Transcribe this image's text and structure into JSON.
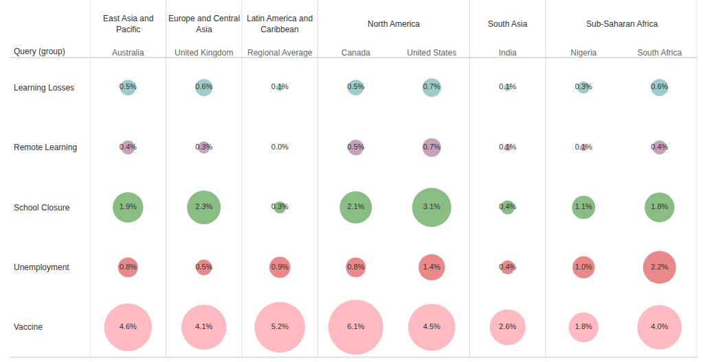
{
  "chart_data": {
    "type": "bubble",
    "row_header": "Query (group)",
    "categories": [
      "Australia",
      "United Kingdom",
      "Regional Average",
      "Canada",
      "United States",
      "India",
      "Nigeria",
      "South Africa"
    ],
    "groups": [
      {
        "name": "East Asia and Pacific",
        "categories": [
          "Australia"
        ]
      },
      {
        "name": "Europe and Central Asia",
        "categories": [
          "United Kingdom"
        ]
      },
      {
        "name": "Latin America and Caribbean",
        "categories": [
          "Regional Average"
        ]
      },
      {
        "name": "North America",
        "categories": [
          "Canada",
          "United States"
        ]
      },
      {
        "name": "South Asia",
        "categories": [
          "India"
        ]
      },
      {
        "name": "Sub-Saharan Africa",
        "categories": [
          "Nigeria",
          "South Africa"
        ]
      }
    ],
    "data_labels": true,
    "series": [
      {
        "name": "Learning Losses",
        "color": "#76b7b2",
        "values": [
          0.5,
          0.6,
          0.1,
          0.5,
          0.7,
          0.1,
          0.3,
          0.6
        ],
        "value_labels": [
          "0.5%",
          "0.6%",
          "0.1%",
          "0.5%",
          "0.7%",
          "0.1%",
          "0.3%",
          "0.6%"
        ]
      },
      {
        "name": "Remote Learning",
        "color": "#b07aa1",
        "values": [
          0.4,
          0.3,
          0.0,
          0.5,
          0.7,
          0.1,
          0.1,
          0.4
        ],
        "value_labels": [
          "0.4%",
          "0.3%",
          "0.0%",
          "0.5%",
          "0.7%",
          "0.1%",
          "0.1%",
          "0.4%"
        ]
      },
      {
        "name": "School Closure",
        "color": "#59a14f",
        "values": [
          1.9,
          2.3,
          0.3,
          2.1,
          3.1,
          0.4,
          1.1,
          1.8
        ],
        "value_labels": [
          "1.9%",
          "2.3%",
          "0.3%",
          "2.1%",
          "3.1%",
          "0.4%",
          "1.1%",
          "1.8%"
        ]
      },
      {
        "name": "Unemployment",
        "color": "#e15759",
        "values": [
          0.8,
          0.5,
          0.9,
          0.8,
          1.4,
          0.4,
          1.0,
          2.2
        ],
        "value_labels": [
          "0.8%",
          "0.5%",
          "0.9%",
          "0.8%",
          "1.4%",
          "0.4%",
          "1.0%",
          "2.2%"
        ]
      },
      {
        "name": "Vaccine",
        "color": "#ff9da7",
        "values": [
          4.6,
          4.1,
          5.2,
          6.1,
          4.5,
          2.6,
          1.8,
          4.0
        ],
        "value_labels": [
          "4.6%",
          "4.1%",
          "5.2%",
          "6.1%",
          "4.5%",
          "2.6%",
          "1.8%",
          "4.0%"
        ]
      }
    ]
  }
}
